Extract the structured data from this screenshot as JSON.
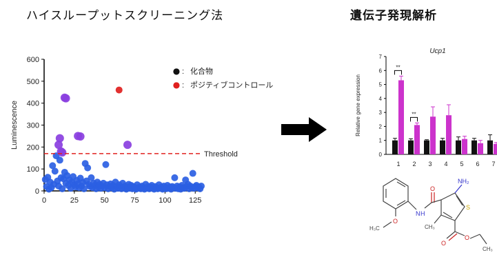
{
  "headings": {
    "left": "ハイスループットスクリーニング法",
    "right": "遺伝子発現解析"
  },
  "chart_data": [
    {
      "type": "scatter",
      "title": "",
      "xlabel": "",
      "ylabel": "Luminescence",
      "xlim": [
        0,
        130
      ],
      "ylim": [
        0,
        600
      ],
      "x_ticks": [
        0,
        25,
        50,
        75,
        100,
        125
      ],
      "y_ticks": [
        0,
        100,
        200,
        300,
        400,
        500,
        600
      ],
      "grid": false,
      "legend_position": "top-right",
      "legend": [
        {
          "label": "化合物",
          "color": "#111111",
          "marker": "●",
          "sep": ":"
        },
        {
          "label": "ポジティブコントロール",
          "color": "#e0201e",
          "marker": "●",
          "sep": ":"
        }
      ],
      "threshold": {
        "value": 170,
        "label": "Threshold",
        "color": "#e0201e"
      },
      "colors": {
        "compound": "#2b5fe3",
        "hit": "#8a3fe0",
        "positive": "#e0201e"
      },
      "series": [
        {
          "group": "compound",
          "points": [
            [
              1,
              52
            ],
            [
              2,
              20
            ],
            [
              3,
              62
            ],
            [
              4,
              8
            ],
            [
              5,
              40
            ],
            [
              6,
              15
            ],
            [
              7,
              115
            ],
            [
              8,
              30
            ],
            [
              9,
              90
            ],
            [
              10,
              160
            ],
            [
              11,
              45
            ],
            [
              12,
              22
            ],
            [
              13,
              140
            ],
            [
              14,
              60
            ],
            [
              15,
              10
            ],
            [
              16,
              55
            ],
            [
              17,
              85
            ],
            [
              18,
              35
            ],
            [
              19,
              70
            ],
            [
              20,
              25
            ],
            [
              21,
              50
            ],
            [
              22,
              12
            ],
            [
              23,
              40
            ],
            [
              24,
              65
            ],
            [
              25,
              28
            ],
            [
              26,
              18
            ],
            [
              27,
              48
            ],
            [
              28,
              32
            ],
            [
              29,
              15
            ],
            [
              30,
              58
            ],
            [
              31,
              22
            ],
            [
              32,
              38
            ],
            [
              33,
              10
            ],
            [
              34,
              125
            ],
            [
              35,
              45
            ],
            [
              36,
              105
            ],
            [
              37,
              30
            ],
            [
              38,
              20
            ],
            [
              39,
              60
            ],
            [
              40,
              15
            ],
            [
              41,
              35
            ],
            [
              42,
              25
            ],
            [
              43,
              10
            ],
            [
              44,
              40
            ],
            [
              45,
              18
            ],
            [
              46,
              30
            ],
            [
              47,
              12
            ],
            [
              48,
              22
            ],
            [
              49,
              35
            ],
            [
              50,
              15
            ],
            [
              51,
              120
            ],
            [
              52,
              28
            ],
            [
              53,
              10
            ],
            [
              54,
              20
            ],
            [
              55,
              32
            ],
            [
              56,
              15
            ],
            [
              57,
              25
            ],
            [
              58,
              8
            ],
            [
              59,
              40
            ],
            [
              60,
              18
            ],
            [
              61,
              12
            ],
            [
              62,
              28
            ],
            [
              63,
              20
            ],
            [
              64,
              10
            ],
            [
              65,
              35
            ],
            [
              66,
              15
            ],
            [
              67,
              22
            ],
            [
              68,
              8
            ],
            [
              69,
              18
            ],
            [
              70,
              30
            ],
            [
              71,
              12
            ],
            [
              72,
              25
            ],
            [
              73,
              10
            ],
            [
              74,
              20
            ],
            [
              75,
              15
            ],
            [
              76,
              8
            ],
            [
              77,
              28
            ],
            [
              78,
              12
            ],
            [
              79,
              18
            ],
            [
              80,
              10
            ],
            [
              81,
              22
            ],
            [
              82,
              15
            ],
            [
              83,
              8
            ],
            [
              84,
              30
            ],
            [
              85,
              12
            ],
            [
              86,
              20
            ],
            [
              87,
              10
            ],
            [
              88,
              18
            ],
            [
              89,
              25
            ],
            [
              90,
              12
            ],
            [
              91,
              8
            ],
            [
              92,
              20
            ],
            [
              93,
              15
            ],
            [
              94,
              10
            ],
            [
              95,
              28
            ],
            [
              96,
              12
            ],
            [
              97,
              18
            ],
            [
              98,
              8
            ],
            [
              99,
              22
            ],
            [
              100,
              15
            ],
            [
              101,
              10
            ],
            [
              102,
              25
            ],
            [
              103,
              12
            ],
            [
              104,
              18
            ],
            [
              105,
              8
            ],
            [
              106,
              20
            ],
            [
              107,
              15
            ],
            [
              108,
              60
            ],
            [
              109,
              12
            ],
            [
              110,
              22
            ],
            [
              111,
              10
            ],
            [
              112,
              18
            ],
            [
              113,
              8
            ],
            [
              114,
              25
            ],
            [
              115,
              15
            ],
            [
              116,
              12
            ],
            [
              117,
              50
            ],
            [
              118,
              20
            ],
            [
              119,
              30
            ],
            [
              120,
              10
            ],
            [
              121,
              22
            ],
            [
              122,
              15
            ],
            [
              123,
              80
            ],
            [
              124,
              12
            ],
            [
              125,
              20
            ],
            [
              126,
              25
            ],
            [
              127,
              15
            ],
            [
              128,
              18
            ],
            [
              129,
              10
            ],
            [
              130,
              22
            ]
          ]
        },
        {
          "group": "hit",
          "points": [
            [
              12,
              210
            ],
            [
              13,
              240
            ],
            [
              14,
              180
            ],
            [
              15,
              175
            ],
            [
              17,
              425
            ],
            [
              18,
              422
            ],
            [
              28,
              250
            ],
            [
              30,
              248
            ],
            [
              69,
              210
            ]
          ]
        },
        {
          "group": "positive",
          "points": [
            [
              62,
              460
            ]
          ]
        }
      ]
    },
    {
      "type": "bar",
      "title": "Ucp1",
      "xlabel": "",
      "ylabel": "Relative gene expression",
      "categories": [
        "1",
        "2",
        "3",
        "4",
        "5",
        "6",
        "7"
      ],
      "ylim": [
        0,
        7
      ],
      "y_ticks": [
        0,
        1,
        2,
        3,
        4,
        5,
        6,
        7
      ],
      "grid": false,
      "colors": {
        "control": "#111111",
        "treated": "#cc33cc"
      },
      "series": [
        {
          "values": [
            1.0,
            1.0,
            1.0,
            1.0,
            1.0,
            1.0,
            1.0
          ],
          "errors": [
            0.15,
            0.12,
            0.05,
            0.15,
            0.25,
            0.15,
            0.4
          ]
        },
        {
          "values": [
            5.3,
            2.1,
            2.7,
            2.8,
            1.1,
            0.8,
            0.75
          ],
          "errors": [
            0.3,
            0.15,
            0.7,
            0.75,
            0.2,
            0.2,
            0.1
          ]
        }
      ],
      "significance": [
        {
          "category_index": 0,
          "label": "**"
        },
        {
          "category_index": 1,
          "label": "**"
        }
      ]
    }
  ],
  "molecule": {
    "labels": [
      "NH₂",
      "S",
      "O",
      "O",
      "O",
      "N",
      "H",
      "O",
      "H₃C",
      "CH₃",
      "CH₃"
    ],
    "colors": {
      "nitrogen": "#3333cc",
      "oxygen": "#cc2222",
      "sulfur": "#c9a400",
      "carbon": "#444444"
    }
  }
}
